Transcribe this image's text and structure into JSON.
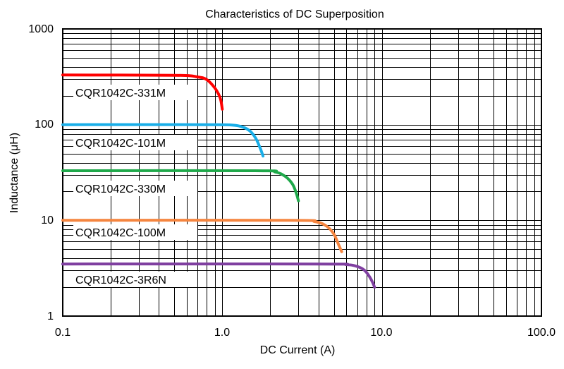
{
  "chart_data": {
    "type": "line",
    "title": "Characteristics of DC Superposition",
    "xlabel": "DC Current (A)",
    "ylabel": "Inductance (μH)",
    "x_scale": "log",
    "y_scale": "log",
    "xlim": [
      0.1,
      100
    ],
    "ylim": [
      1,
      1000
    ],
    "grid": true,
    "x_tick_labels": [
      "0.1",
      "1.0",
      "10.0",
      "100.0"
    ],
    "y_tick_labels": [
      "1",
      "10",
      "100",
      "1000"
    ],
    "series": [
      {
        "name": "CQR1042C-331M",
        "color": "#ff0000",
        "points": [
          [
            0.1,
            330
          ],
          [
            0.5,
            328
          ],
          [
            0.7,
            315
          ],
          [
            0.8,
            295
          ],
          [
            0.9,
            240
          ],
          [
            0.97,
            190
          ],
          [
            1.0,
            145
          ]
        ]
      },
      {
        "name": "CQR1042C-101M",
        "color": "#19aee8",
        "points": [
          [
            0.1,
            100
          ],
          [
            0.8,
            100
          ],
          [
            1.15,
            99
          ],
          [
            1.35,
            94
          ],
          [
            1.5,
            85
          ],
          [
            1.62,
            72
          ],
          [
            1.72,
            58
          ],
          [
            1.8,
            47
          ]
        ]
      },
      {
        "name": "CQR1042C-330M",
        "color": "#1fa84a",
        "points": [
          [
            0.1,
            33
          ],
          [
            1.6,
            33
          ],
          [
            2.15,
            32
          ],
          [
            2.5,
            28.5
          ],
          [
            2.75,
            24
          ],
          [
            2.9,
            19.5
          ],
          [
            3.0,
            16
          ]
        ]
      },
      {
        "name": "CQR1042C-100M",
        "color": "#f5853f",
        "points": [
          [
            0.1,
            10
          ],
          [
            2.6,
            10
          ],
          [
            3.8,
            9.7
          ],
          [
            4.5,
            8.7
          ],
          [
            5.0,
            7.2
          ],
          [
            5.3,
            5.8
          ],
          [
            5.6,
            4.7
          ]
        ]
      },
      {
        "name": "CQR1042C-3R6N",
        "color": "#7f3fa0",
        "points": [
          [
            0.1,
            3.5
          ],
          [
            4.0,
            3.5
          ],
          [
            6.0,
            3.45
          ],
          [
            7.0,
            3.3
          ],
          [
            7.8,
            3.0
          ],
          [
            8.4,
            2.55
          ],
          [
            8.8,
            2.2
          ],
          [
            9.0,
            2.0
          ]
        ]
      }
    ]
  }
}
